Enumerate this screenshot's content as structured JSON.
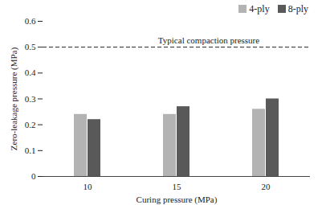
{
  "chart_data": {
    "type": "bar",
    "categories": [
      10,
      15,
      20
    ],
    "series": [
      {
        "name": "4-ply",
        "color": "#b3b3b3",
        "values": [
          0.24,
          0.24,
          0.26
        ]
      },
      {
        "name": "8-ply",
        "color": "#595959",
        "values": [
          0.22,
          0.27,
          0.3
        ]
      }
    ],
    "x_label": "Curing pressure (MPa)",
    "y_label": "Zero-leakage pressure (MPa)",
    "ylim": [
      0,
      0.6
    ],
    "yticks": [
      0,
      0.1,
      0.2,
      0.3,
      0.4,
      0.5,
      0.6
    ],
    "reference_line": {
      "value": 0.5,
      "label": "Typical compaction pressure",
      "line_style": "dashed"
    },
    "legend": "top-right",
    "grid": false
  }
}
